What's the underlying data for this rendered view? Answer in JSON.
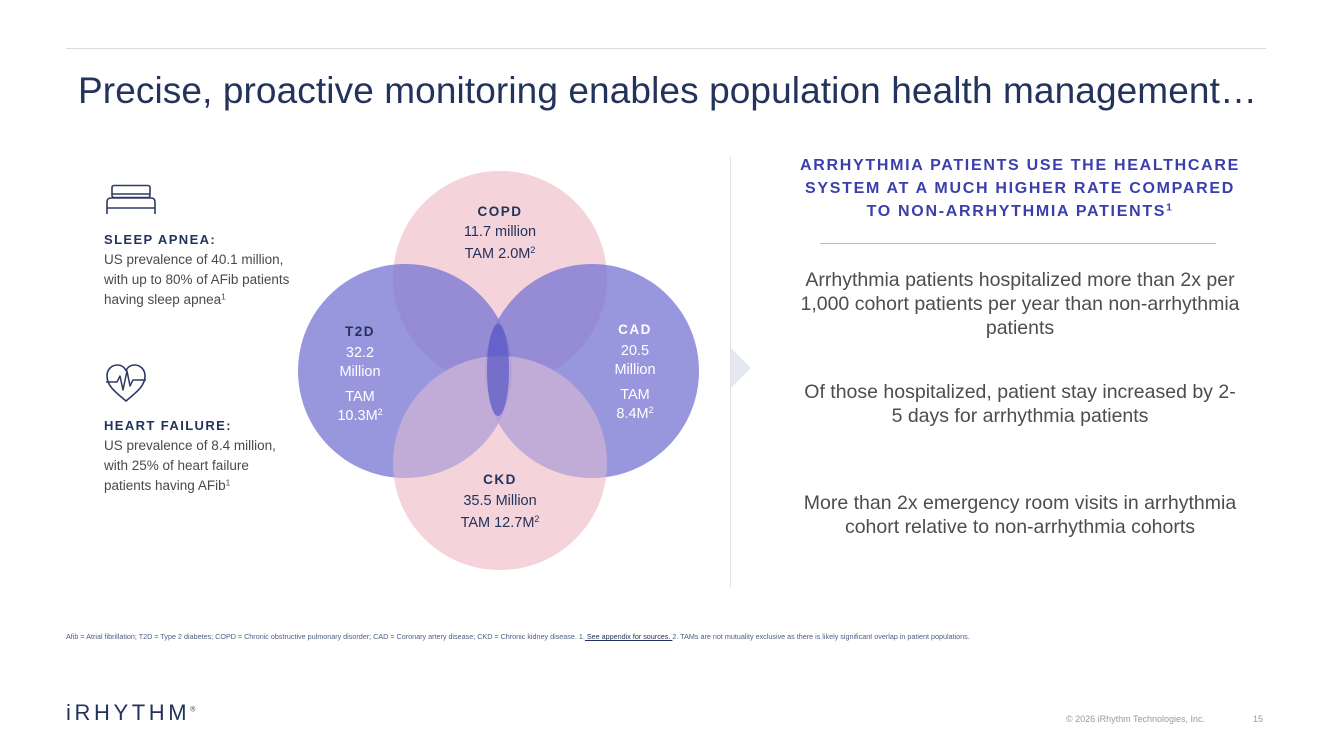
{
  "title": "Precise, proactive monitoring enables population health management…",
  "conditions": [
    {
      "icon": "bed-icon",
      "heading": "SLEEP APNEA:",
      "desc": "US prevalence of 40.1 million, with up to 80% of AFib patients having sleep apnea",
      "sup": "1"
    },
    {
      "icon": "heart-pulse-icon",
      "heading": "HEART FAILURE:",
      "desc": "US prevalence of 8.4 million, with 25% of heart failure patients having AFib",
      "sup": "1"
    }
  ],
  "venn": {
    "copd": {
      "name": "COPD",
      "prevalence": "11.7 million",
      "tam": "TAM 2.0M",
      "sup": "2"
    },
    "t2d": {
      "name": "T2D",
      "prevalence_line1": "32.2",
      "prevalence_line2": "Million",
      "tam_line1": "TAM",
      "tam_line2": "10.3M",
      "sup": "2"
    },
    "cad": {
      "name": "CAD",
      "prevalence_line1": "20.5",
      "prevalence_line2": "Million",
      "tam_line1": "TAM",
      "tam_line2": "8.4M",
      "sup": "2"
    },
    "ckd": {
      "name": "CKD",
      "prevalence": "35.5 Million",
      "tam": "TAM 12.7M",
      "sup": "2"
    },
    "colors": {
      "pink": "#f4d3da",
      "purple": "#7b79d3"
    }
  },
  "stats": {
    "heading": "ARRHYTHMIA PATIENTS USE THE HEALTHCARE SYSTEM AT A MUCH HIGHER RATE COMPARED TO NON-ARRHYTHMIA PATIENTS",
    "heading_sup": "1",
    "items": [
      "Arrhythmia patients hospitalized more than 2x per 1,000 cohort patients per year than non-arrhythmia patients",
      "Of those hospitalized, patient stay increased by 2-5 days for arrhythmia patients",
      "More than 2x emergency room visits in arrhythmia cohort relative to non-arrhythmia cohorts"
    ]
  },
  "footnote": {
    "text_before": "Afib = Atrial fibrillation; T2D = Type 2 diabetes; COPD = Chronic obstructive pulmonary disorder; CAD = Coronary artery disease; CKD = Chronic kidney disease. 1.",
    "link": " See appendix for sources. ",
    "text_after": "2. TAMs are not mutuality exclusive as there is likely significant overlap in patient populations."
  },
  "footer": {
    "logo": "iRHYTHM",
    "logo_mark": "®",
    "copyright": "© 2026 iRhythm Technologies, Inc.",
    "page": "15"
  },
  "colors": {
    "navy": "#23335c",
    "accent": "#3b3fab"
  }
}
